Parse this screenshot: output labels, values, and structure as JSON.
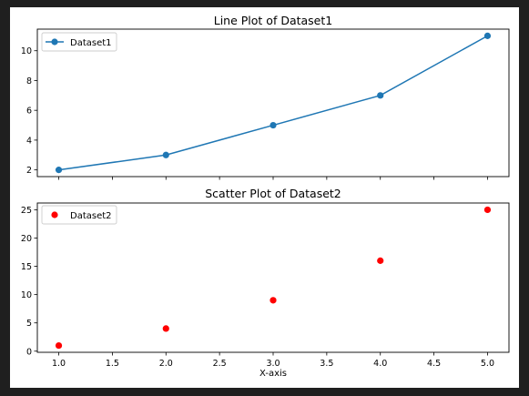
{
  "colors": {
    "outer_frame": "#1f1f1f",
    "figure_bg": "#ffffff",
    "axis": "#000000",
    "dataset1": "#1f77b4",
    "dataset2": "#ff0000"
  },
  "chart_data": [
    {
      "type": "line",
      "title": "Line Plot of Dataset1",
      "xlabel": "",
      "ylabel": "",
      "x": [
        1,
        2,
        3,
        4,
        5
      ],
      "series": [
        {
          "name": "Dataset1",
          "values": [
            2,
            3,
            5,
            7,
            11
          ],
          "marker": "circle"
        }
      ],
      "xlim": [
        0.8,
        5.2
      ],
      "ylim": [
        1.55,
        11.45
      ],
      "xticks": [
        1.0,
        1.5,
        2.0,
        2.5,
        3.0,
        3.5,
        4.0,
        4.5,
        5.0
      ],
      "show_xticklabels": false,
      "yticks": [
        2,
        4,
        6,
        8,
        10
      ],
      "ytick_labels": [
        "2",
        "4",
        "6",
        "8",
        "10"
      ],
      "legend": "top-left",
      "grid": false
    },
    {
      "type": "scatter",
      "title": "Scatter Plot of Dataset2",
      "xlabel": "X-axis",
      "ylabel": "",
      "x": [
        1,
        2,
        3,
        4,
        5
      ],
      "series": [
        {
          "name": "Dataset2",
          "values": [
            1,
            4,
            9,
            16,
            25
          ]
        }
      ],
      "xlim": [
        0.8,
        5.2
      ],
      "ylim": [
        -0.2,
        26.2
      ],
      "xticks": [
        1.0,
        1.5,
        2.0,
        2.5,
        3.0,
        3.5,
        4.0,
        4.5,
        5.0
      ],
      "xtick_labels": [
        "1.0",
        "1.5",
        "2.0",
        "2.5",
        "3.0",
        "3.5",
        "4.0",
        "4.5",
        "5.0"
      ],
      "yticks": [
        0,
        5,
        10,
        15,
        20,
        25
      ],
      "ytick_labels": [
        "0",
        "5",
        "10",
        "15",
        "20",
        "25"
      ],
      "legend": "top-left",
      "grid": false
    }
  ]
}
